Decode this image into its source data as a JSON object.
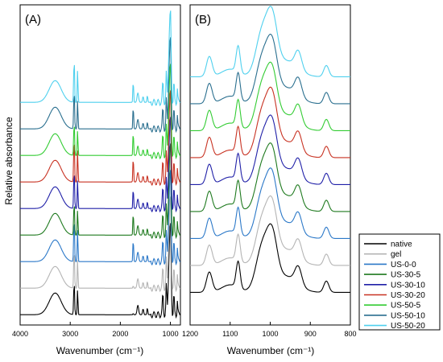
{
  "figure": {
    "ylabel": "Relative absorbance",
    "xlabel": "Wavenumber (cm⁻¹)"
  },
  "legend": [
    {
      "name": "native",
      "color": "#000000"
    },
    {
      "name": "gel",
      "color": "#b4b4b4"
    },
    {
      "name": "US-0-0",
      "color": "#2b78c8"
    },
    {
      "name": "US-30-5",
      "color": "#1f7a1f"
    },
    {
      "name": "US-30-10",
      "color": "#2020a8"
    },
    {
      "name": "US-30-20",
      "color": "#c83222"
    },
    {
      "name": "US-50-5",
      "color": "#33cc33"
    },
    {
      "name": "US-50-10",
      "color": "#2a6f8f"
    },
    {
      "name": "US-50-20",
      "color": "#4fd0ee"
    }
  ],
  "chart_data": [
    {
      "type": "line",
      "panel_label": "(A)",
      "xlabel": "Wavenumber (cm⁻¹)",
      "ylabel": "Relative absorbance",
      "xlim": [
        4000,
        800
      ],
      "x_reversed": true,
      "xticks": [
        4000,
        3000,
        2000,
        1000
      ],
      "series_order_bottom_to_top": [
        "native",
        "gel",
        "US-0-0",
        "US-30-5",
        "US-30-10",
        "US-30-20",
        "US-50-5",
        "US-50-10",
        "US-50-20"
      ],
      "key_bands_cm-1": [
        3300,
        2920,
        2850,
        1740,
        1650,
        1540,
        1150,
        1080,
        1020,
        990
      ],
      "stack_offset_step": 1.0,
      "y_axis_ticks": "none"
    },
    {
      "type": "line",
      "panel_label": "(B)",
      "xlabel": "Wavenumber (cm⁻¹)",
      "xlim": [
        1200,
        800
      ],
      "x_reversed": true,
      "xticks": [
        1200,
        1100,
        1000,
        900,
        800
      ],
      "series_order_bottom_to_top": [
        "native",
        "gel",
        "US-0-0",
        "US-30-5",
        "US-30-10",
        "US-30-20",
        "US-50-5",
        "US-50-10",
        "US-50-20"
      ],
      "key_bands_cm-1": [
        1150,
        1080,
        1020,
        995,
        930,
        860
      ],
      "stack_offset_step": 1.0,
      "y_axis_ticks": "none"
    }
  ]
}
